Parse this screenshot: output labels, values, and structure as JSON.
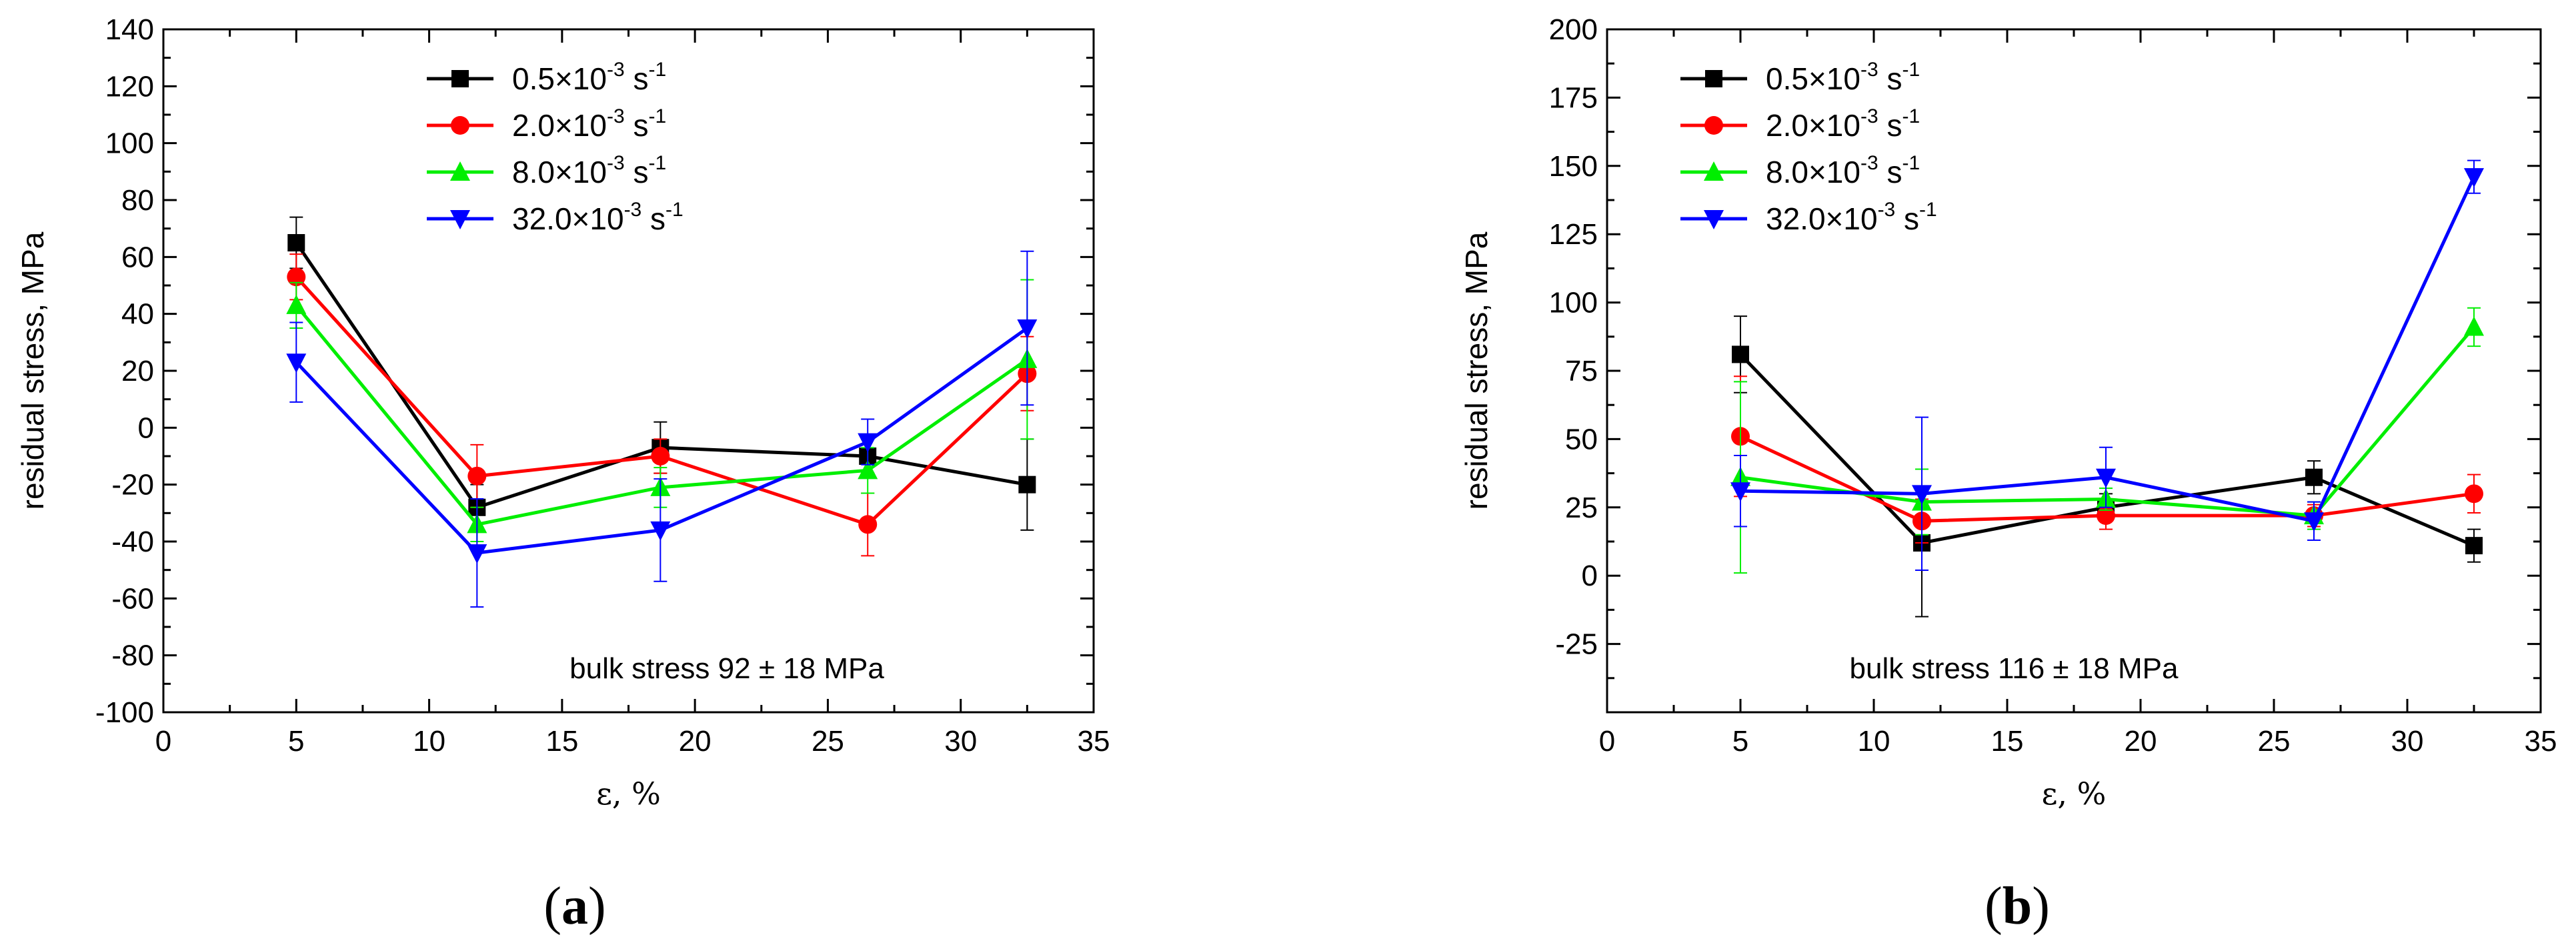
{
  "chart_data": [
    {
      "type": "line",
      "panel_label": "a",
      "xlabel": "ε, %",
      "ylabel": "residual stress, MPa",
      "xlim": [
        0,
        35
      ],
      "ylim": [
        -100,
        140
      ],
      "xticks": [
        0,
        5,
        10,
        15,
        20,
        25,
        30,
        35
      ],
      "yticks": [
        -100,
        -80,
        -60,
        -40,
        -20,
        0,
        20,
        40,
        60,
        80,
        100,
        120,
        140
      ],
      "legend_position": "top-center",
      "annotation": "bulk stress 92 ± 18 MPa",
      "series": [
        {
          "name": "0.5×10-3 s-1",
          "label_main": "0.5×10",
          "label_exp": "-3",
          "label_unit": " s",
          "label_unit_exp": "-1",
          "color": "#000000",
          "marker": "square",
          "x": [
            5,
            11.8,
            18.7,
            26.5,
            32.5
          ],
          "y": [
            65,
            -28,
            -7,
            -10,
            -20
          ],
          "err": [
            9,
            8,
            9,
            6,
            16
          ]
        },
        {
          "name": "2.0×10-3 s-1",
          "label_main": "2.0×10",
          "label_exp": "-3",
          "label_unit": " s",
          "label_unit_exp": "-1",
          "color": "#ff0000",
          "marker": "circle",
          "x": [
            5,
            11.8,
            18.7,
            26.5,
            32.5
          ],
          "y": [
            53,
            -17,
            -10,
            -34,
            19
          ],
          "err": [
            8,
            11,
            6,
            11,
            13
          ]
        },
        {
          "name": "8.0×10-3 s-1",
          "label_main": "8.0×10",
          "label_exp": "-3",
          "label_unit": " s",
          "label_unit_exp": "-1",
          "color": "#00ee00",
          "marker": "triangle-up",
          "x": [
            5,
            11.8,
            18.7,
            26.5,
            32.5
          ],
          "y": [
            43,
            -34,
            -21,
            -15,
            24
          ],
          "err": [
            8,
            6,
            7,
            8,
            28
          ]
        },
        {
          "name": "32.0×10-3 s-1",
          "label_main": "32.0×10",
          "label_exp": "-3",
          "label_unit": " s",
          "label_unit_exp": "-1",
          "color": "#0000ff",
          "marker": "triangle-down",
          "x": [
            5,
            11.8,
            18.7,
            26.5,
            32.5
          ],
          "y": [
            23,
            -44,
            -36,
            -5,
            35
          ],
          "err": [
            14,
            19,
            18,
            8,
            27
          ]
        }
      ]
    },
    {
      "type": "line",
      "panel_label": "b",
      "xlabel": "ε, %",
      "ylabel": "residual stress, MPa",
      "xlim": [
        0,
        35
      ],
      "ylim": [
        -50,
        200
      ],
      "xticks": [
        0,
        5,
        10,
        15,
        20,
        25,
        30,
        35
      ],
      "yticks": [
        -25,
        0,
        25,
        50,
        75,
        100,
        125,
        150,
        175,
        200
      ],
      "legend_position": "top-center",
      "annotation": "bulk stress 116 ± 18 MPa",
      "series": [
        {
          "name": "0.5×10-3 s-1",
          "label_main": "0.5×10",
          "label_exp": "-3",
          "label_unit": " s",
          "label_unit_exp": "-1",
          "color": "#000000",
          "marker": "square",
          "x": [
            5,
            11.8,
            18.7,
            26.5,
            32.5
          ],
          "y": [
            81,
            12,
            25,
            36,
            11
          ],
          "err": [
            14,
            27,
            5,
            6,
            6
          ]
        },
        {
          "name": "2.0×10-3 s-1",
          "label_main": "2.0×10",
          "label_exp": "-3",
          "label_unit": " s",
          "label_unit_exp": "-1",
          "color": "#ff0000",
          "marker": "circle",
          "x": [
            5,
            11.8,
            18.7,
            26.5,
            32.5
          ],
          "y": [
            51,
            20,
            22,
            22,
            30
          ],
          "err": [
            22,
            8,
            5,
            4,
            7
          ]
        },
        {
          "name": "8.0×10-3 s-1",
          "label_main": "8.0×10",
          "label_exp": "-3",
          "label_unit": " s",
          "label_unit_exp": "-1",
          "color": "#00ee00",
          "marker": "triangle-up",
          "x": [
            5,
            11.8,
            18.7,
            26.5,
            32.5
          ],
          "y": [
            36,
            27,
            28,
            22,
            91
          ],
          "err": [
            35,
            12,
            4,
            5,
            7
          ]
        },
        {
          "name": "32.0×10-3 s-1",
          "label_main": "32.0×10",
          "label_exp": "-3",
          "label_unit": " s",
          "label_unit_exp": "-1",
          "color": "#0000ff",
          "marker": "triangle-down",
          "x": [
            5,
            11.8,
            18.7,
            26.5,
            32.5
          ],
          "y": [
            31,
            30,
            36,
            20,
            146
          ],
          "err": [
            13,
            28,
            11,
            7,
            6
          ]
        }
      ]
    }
  ]
}
